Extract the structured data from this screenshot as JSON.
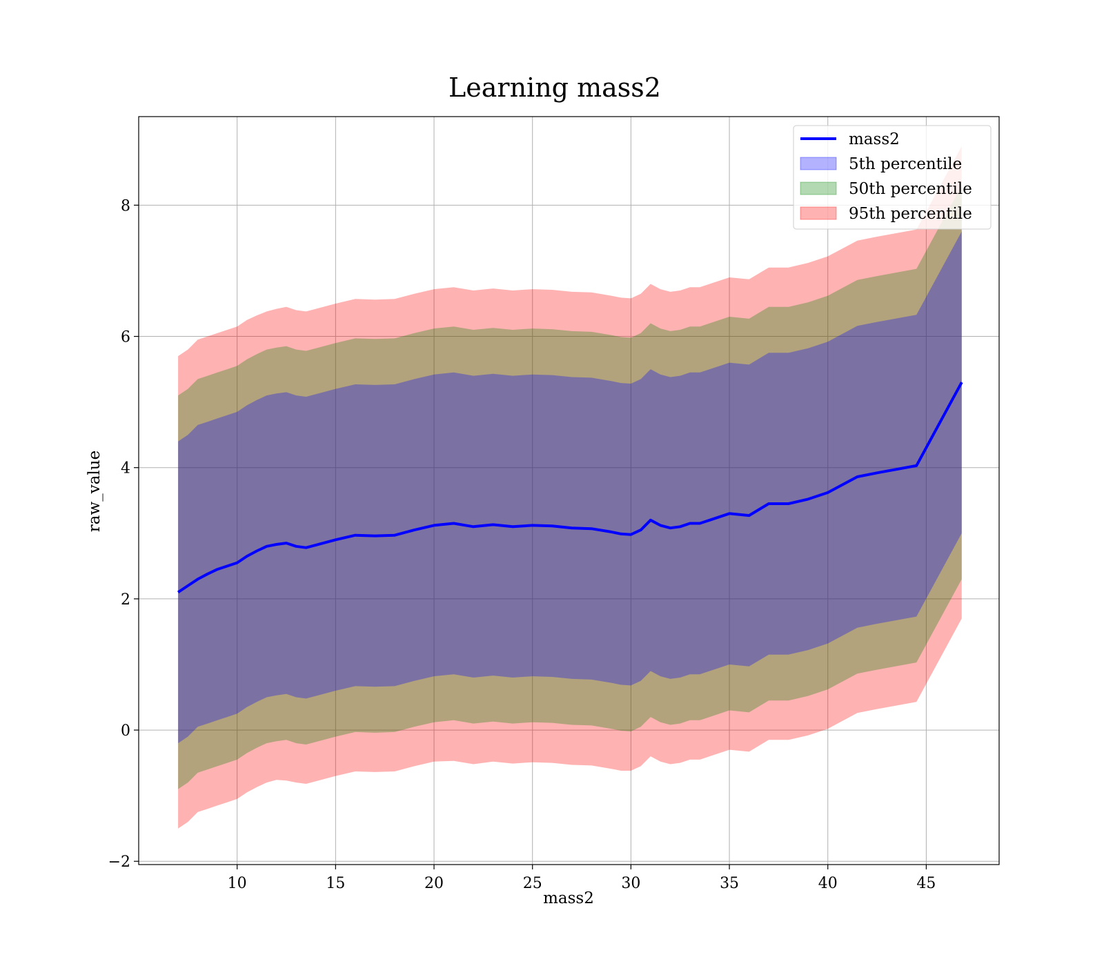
{
  "chart_data": {
    "type": "area",
    "title": "Learning mass2",
    "xlabel": "mass2",
    "ylabel": "raw_value",
    "xlim": [
      5,
      48.7
    ],
    "ylim": [
      -2.05,
      9.35
    ],
    "xticks": [
      10,
      15,
      20,
      25,
      30,
      35,
      40,
      45
    ],
    "yticks": [
      -2,
      0,
      2,
      4,
      6,
      8
    ],
    "grid": true,
    "legend_position": "top-right",
    "colors": {
      "line": "#0000ff",
      "band_5th": "#0000ff",
      "band_50th": "#008000",
      "band_95th": "#ff0000",
      "grid": "#b0b0b0"
    },
    "x": [
      7.0,
      7.5,
      8.0,
      8.5,
      9.0,
      9.5,
      10.0,
      10.5,
      11.0,
      11.5,
      12.0,
      12.5,
      13.0,
      13.5,
      14.0,
      15.0,
      16.0,
      17.0,
      18.0,
      19.0,
      20.0,
      21.0,
      22.0,
      23.0,
      24.0,
      25.0,
      26.0,
      27.0,
      28.0,
      29.0,
      29.5,
      30.0,
      30.5,
      31.0,
      31.5,
      32.0,
      32.5,
      33.0,
      33.5,
      34.0,
      35.0,
      36.0,
      37.0,
      38.0,
      39.0,
      40.0,
      41.5,
      42.5,
      44.5,
      46.8
    ],
    "series": [
      {
        "name": "mass2",
        "values": [
          2.1,
          2.2,
          2.3,
          2.38,
          2.45,
          2.5,
          2.55,
          2.65,
          2.73,
          2.8,
          2.83,
          2.85,
          2.8,
          2.78,
          2.82,
          2.9,
          2.97,
          2.96,
          2.97,
          3.05,
          3.12,
          3.15,
          3.1,
          3.13,
          3.1,
          3.12,
          3.11,
          3.08,
          3.07,
          3.02,
          2.99,
          2.98,
          3.05,
          3.2,
          3.12,
          3.08,
          3.1,
          3.15,
          3.15,
          3.2,
          3.3,
          3.27,
          3.45,
          3.45,
          3.52,
          3.62,
          3.86,
          3.92,
          4.03,
          5.3
        ]
      }
    ],
    "bands": [
      {
        "name": "95th percentile",
        "color": "#ff0000",
        "lower": [
          -1.5,
          -1.4,
          -1.25,
          -1.2,
          -1.15,
          -1.1,
          -1.05,
          -0.95,
          -0.87,
          -0.8,
          -0.76,
          -0.77,
          -0.8,
          -0.82,
          -0.78,
          -0.7,
          -0.63,
          -0.64,
          -0.63,
          -0.55,
          -0.48,
          -0.47,
          -0.52,
          -0.48,
          -0.51,
          -0.49,
          -0.5,
          -0.53,
          -0.54,
          -0.59,
          -0.62,
          -0.62,
          -0.55,
          -0.4,
          -0.48,
          -0.52,
          -0.5,
          -0.45,
          -0.45,
          -0.4,
          -0.3,
          -0.33,
          -0.15,
          -0.15,
          -0.08,
          0.02,
          0.26,
          0.32,
          0.43,
          1.7
        ],
        "upper": [
          5.7,
          5.8,
          5.95,
          6.0,
          6.05,
          6.1,
          6.15,
          6.25,
          6.32,
          6.38,
          6.42,
          6.45,
          6.4,
          6.38,
          6.42,
          6.5,
          6.57,
          6.56,
          6.57,
          6.65,
          6.72,
          6.75,
          6.7,
          6.73,
          6.7,
          6.72,
          6.71,
          6.68,
          6.67,
          6.62,
          6.59,
          6.58,
          6.65,
          6.8,
          6.72,
          6.68,
          6.7,
          6.75,
          6.75,
          6.8,
          6.9,
          6.87,
          7.05,
          7.05,
          7.12,
          7.22,
          7.46,
          7.52,
          7.63,
          8.9
        ]
      },
      {
        "name": "50th percentile",
        "color": "#008000",
        "lower": [
          -0.9,
          -0.8,
          -0.65,
          -0.6,
          -0.55,
          -0.5,
          -0.45,
          -0.35,
          -0.27,
          -0.2,
          -0.17,
          -0.15,
          -0.2,
          -0.22,
          -0.18,
          -0.1,
          -0.03,
          -0.04,
          -0.03,
          0.05,
          0.12,
          0.15,
          0.1,
          0.13,
          0.1,
          0.12,
          0.11,
          0.08,
          0.07,
          0.02,
          -0.01,
          -0.02,
          0.05,
          0.2,
          0.12,
          0.08,
          0.1,
          0.15,
          0.15,
          0.2,
          0.3,
          0.27,
          0.45,
          0.45,
          0.52,
          0.62,
          0.86,
          0.92,
          1.03,
          2.3
        ],
        "upper": [
          5.1,
          5.2,
          5.35,
          5.4,
          5.45,
          5.5,
          5.55,
          5.65,
          5.73,
          5.8,
          5.83,
          5.85,
          5.8,
          5.78,
          5.82,
          5.9,
          5.97,
          5.96,
          5.97,
          6.05,
          6.12,
          6.15,
          6.1,
          6.13,
          6.1,
          6.12,
          6.11,
          6.08,
          6.07,
          6.02,
          5.99,
          5.98,
          6.05,
          6.2,
          6.12,
          6.08,
          6.1,
          6.15,
          6.15,
          6.2,
          6.3,
          6.27,
          6.45,
          6.45,
          6.52,
          6.62,
          6.86,
          6.92,
          7.03,
          8.3
        ]
      },
      {
        "name": "5th percentile",
        "color": "#0000ff",
        "lower": [
          -0.2,
          -0.1,
          0.05,
          0.1,
          0.15,
          0.2,
          0.25,
          0.35,
          0.43,
          0.5,
          0.53,
          0.55,
          0.5,
          0.48,
          0.52,
          0.6,
          0.67,
          0.66,
          0.67,
          0.75,
          0.82,
          0.85,
          0.8,
          0.83,
          0.8,
          0.82,
          0.81,
          0.78,
          0.77,
          0.72,
          0.69,
          0.68,
          0.75,
          0.9,
          0.82,
          0.78,
          0.8,
          0.85,
          0.85,
          0.9,
          1.0,
          0.97,
          1.15,
          1.15,
          1.22,
          1.32,
          1.56,
          1.62,
          1.73,
          3.0
        ],
        "upper": [
          4.4,
          4.5,
          4.65,
          4.7,
          4.75,
          4.8,
          4.85,
          4.95,
          5.03,
          5.1,
          5.13,
          5.15,
          5.1,
          5.08,
          5.12,
          5.2,
          5.27,
          5.26,
          5.27,
          5.35,
          5.42,
          5.45,
          5.4,
          5.43,
          5.4,
          5.42,
          5.41,
          5.38,
          5.37,
          5.32,
          5.29,
          5.28,
          5.35,
          5.5,
          5.42,
          5.38,
          5.4,
          5.45,
          5.45,
          5.5,
          5.6,
          5.57,
          5.75,
          5.75,
          5.82,
          5.92,
          6.16,
          6.22,
          6.33,
          7.6
        ]
      }
    ],
    "legend": [
      {
        "label": "mass2",
        "kind": "line",
        "color": "#0000ff"
      },
      {
        "label": "5th percentile",
        "kind": "patch",
        "color": "#0000ff"
      },
      {
        "label": "50th percentile",
        "kind": "patch",
        "color": "#008000"
      },
      {
        "label": "95th percentile",
        "kind": "patch",
        "color": "#ff0000"
      }
    ]
  }
}
